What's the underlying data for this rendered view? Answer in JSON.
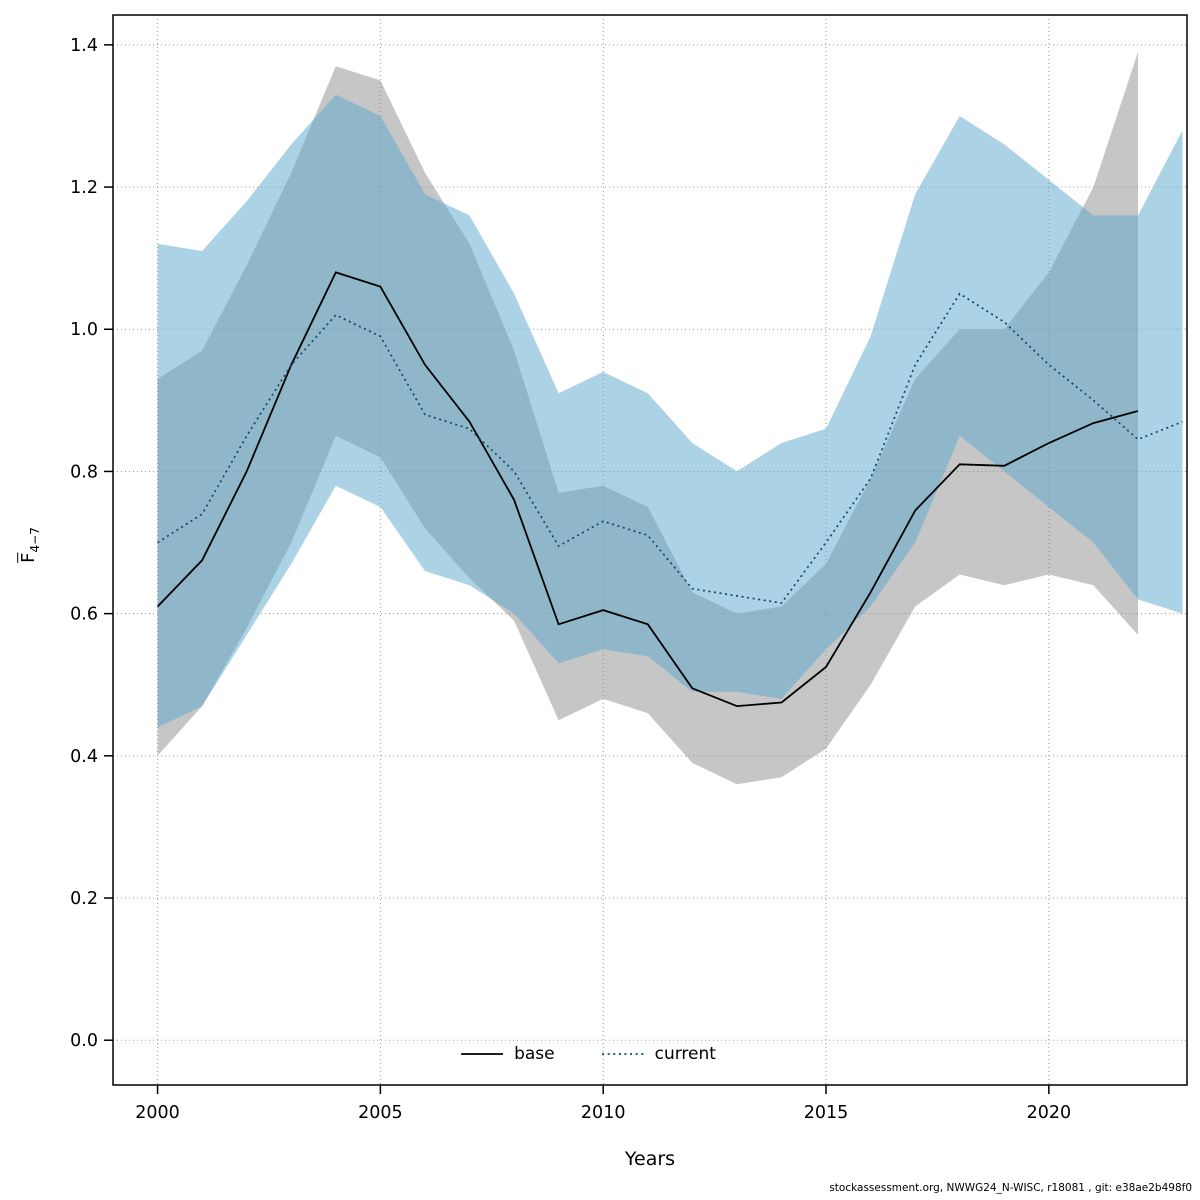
{
  "chart_data": {
    "type": "line",
    "title": "",
    "xlabel": "Years",
    "ylabel_main": "F",
    "ylabel_sub": "4−7",
    "xlim": [
      1999,
      2023.1
    ],
    "ylim": [
      -0.063,
      1.442
    ],
    "xticks": [
      2000,
      2005,
      2010,
      2015,
      2020
    ],
    "yticks": [
      "0.0",
      "0.2",
      "0.4",
      "0.6",
      "0.8",
      "1.0",
      "1.2",
      "1.4"
    ],
    "grid": "dotted",
    "grid_color": "#999999",
    "frame_color": "#000000",
    "legend_position": "bottom-center-inside",
    "series": [
      {
        "name": "base",
        "line_color": "#000000",
        "line_style": "solid",
        "band_color": "rgba(128,128,128,0.45)",
        "years": [
          2000,
          2001,
          2002,
          2003,
          2004,
          2005,
          2006,
          2007,
          2008,
          2009,
          2010,
          2011,
          2012,
          2013,
          2014,
          2015,
          2016,
          2017,
          2018,
          2019,
          2020,
          2021,
          2022
        ],
        "values": [
          0.61,
          0.675,
          0.8,
          0.95,
          1.08,
          1.06,
          0.95,
          0.87,
          0.76,
          0.585,
          0.605,
          0.585,
          0.495,
          0.47,
          0.475,
          0.525,
          0.63,
          0.745,
          0.81,
          0.808,
          0.84,
          0.868,
          0.885
        ],
        "band_lower": [
          0.4,
          0.47,
          0.58,
          0.7,
          0.85,
          0.82,
          0.72,
          0.65,
          0.59,
          0.45,
          0.48,
          0.46,
          0.39,
          0.36,
          0.37,
          0.41,
          0.5,
          0.61,
          0.655,
          0.64,
          0.655,
          0.64,
          0.57
        ],
        "band_upper": [
          0.93,
          0.97,
          1.09,
          1.22,
          1.37,
          1.35,
          1.22,
          1.12,
          0.97,
          0.77,
          0.78,
          0.75,
          0.63,
          0.6,
          0.61,
          0.67,
          0.79,
          0.93,
          1.0,
          1.0,
          1.08,
          1.2,
          1.39
        ]
      },
      {
        "name": "current",
        "line_color": "#0e4a63",
        "line_style": "dotted",
        "band_color": "rgba(90,165,205,0.5)",
        "years": [
          2000,
          2001,
          2002,
          2003,
          2004,
          2005,
          2006,
          2007,
          2008,
          2009,
          2010,
          2011,
          2012,
          2013,
          2014,
          2015,
          2016,
          2017,
          2018,
          2019,
          2020,
          2021,
          2022,
          2023
        ],
        "values": [
          0.7,
          0.74,
          0.85,
          0.95,
          1.02,
          0.99,
          0.88,
          0.86,
          0.8,
          0.695,
          0.73,
          0.71,
          0.635,
          0.625,
          0.615,
          0.7,
          0.79,
          0.95,
          1.05,
          1.01,
          0.95,
          0.9,
          0.845,
          0.87
        ],
        "band_lower": [
          0.44,
          0.47,
          0.57,
          0.67,
          0.78,
          0.75,
          0.66,
          0.64,
          0.6,
          0.53,
          0.55,
          0.54,
          0.49,
          0.49,
          0.48,
          0.55,
          0.61,
          0.7,
          0.85,
          0.8,
          0.75,
          0.7,
          0.62,
          0.6
        ],
        "band_upper": [
          1.12,
          1.11,
          1.18,
          1.26,
          1.33,
          1.3,
          1.19,
          1.16,
          1.05,
          0.91,
          0.94,
          0.91,
          0.84,
          0.8,
          0.84,
          0.86,
          0.99,
          1.19,
          1.3,
          1.26,
          1.21,
          1.16,
          1.16,
          1.28
        ]
      }
    ],
    "caption": "stockassessment.org, NWWG24_N-WISC, r18081 , git: e38ae2b498f0"
  }
}
